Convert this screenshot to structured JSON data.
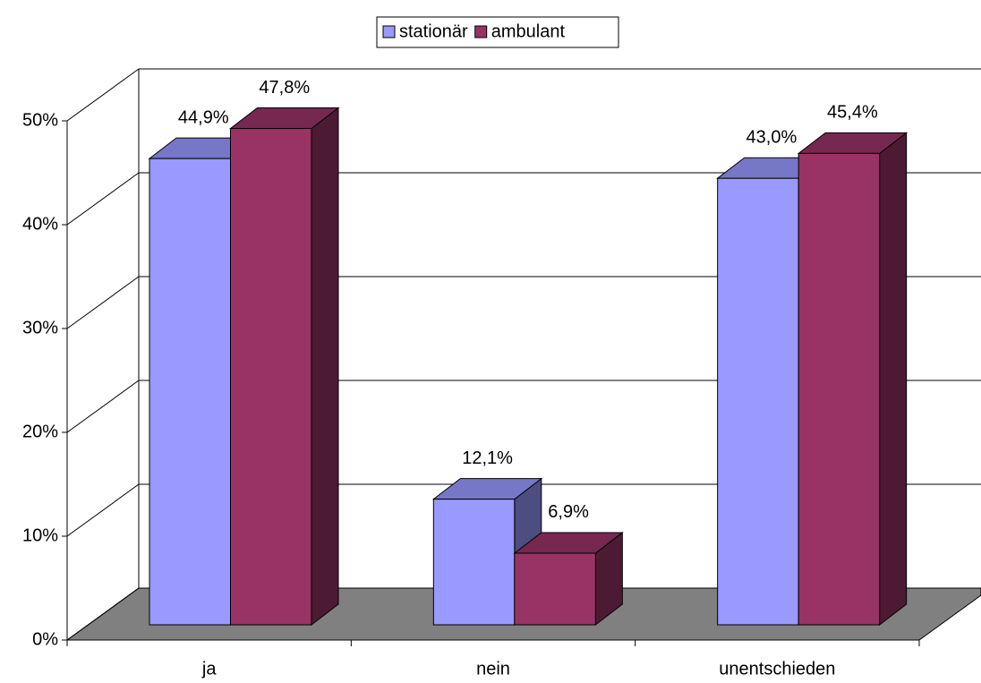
{
  "chart_data": {
    "type": "bar3d",
    "categories": [
      "ja",
      "nein",
      "unentschieden"
    ],
    "series": [
      {
        "name": "stationär",
        "color": "#9999ff",
        "values": [
          44.9,
          12.1,
          43.0
        ],
        "value_labels": [
          "44,9%",
          "12,1%",
          "43,0%"
        ]
      },
      {
        "name": "ambulant",
        "color": "#993366",
        "values": [
          47.8,
          6.9,
          45.4
        ],
        "value_labels": [
          "47,8%",
          "6,9%",
          "45,4%"
        ]
      }
    ],
    "ylim": [
      0,
      50
    ],
    "yticks": [
      {
        "value": 0,
        "label": "0%"
      },
      {
        "value": 10,
        "label": "10%"
      },
      {
        "value": 20,
        "label": "20%"
      },
      {
        "value": 30,
        "label": "30%"
      },
      {
        "value": 40,
        "label": "40%"
      },
      {
        "value": 50,
        "label": "50%"
      }
    ],
    "grid": true,
    "floor_color": "#808080",
    "legend": "top"
  }
}
